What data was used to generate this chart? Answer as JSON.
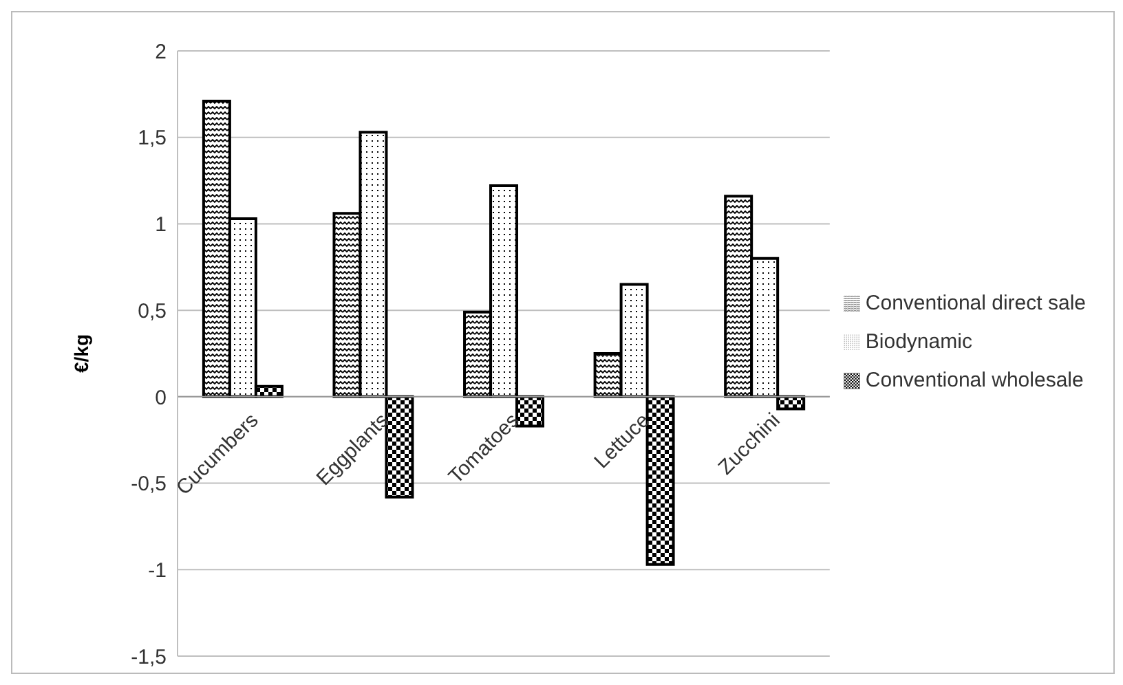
{
  "chart_data": {
    "type": "bar",
    "ylabel": "€/kg",
    "categories": [
      "Cucumbers",
      "Eggplants",
      "Tomatoes",
      "Lettuce",
      "Zucchini"
    ],
    "series": [
      {
        "name": "Conventional direct sale",
        "color": "#000000",
        "values": [
          1.71,
          1.06,
          0.49,
          0.25,
          1.16
        ]
      },
      {
        "name": "Biodynamic",
        "color": "#000000",
        "values": [
          1.03,
          1.53,
          1.22,
          0.65,
          0.8
        ]
      },
      {
        "name": "Conventional wholesale",
        "color": "#000000",
        "values": [
          0.06,
          -0.58,
          -0.17,
          -0.97,
          -0.07
        ]
      }
    ],
    "ylim": [
      -1.5,
      2
    ],
    "yticks": [
      {
        "value": -1.5,
        "label": "-1,5"
      },
      {
        "value": -1,
        "label": "-1"
      },
      {
        "value": -0.5,
        "label": "-0,5"
      },
      {
        "value": 0,
        "label": "0"
      },
      {
        "value": 0.5,
        "label": "0,5"
      },
      {
        "value": 1,
        "label": "1"
      },
      {
        "value": 1.5,
        "label": "1,5"
      },
      {
        "value": 2,
        "label": "2"
      }
    ],
    "grid": "y",
    "legend": "right"
  }
}
